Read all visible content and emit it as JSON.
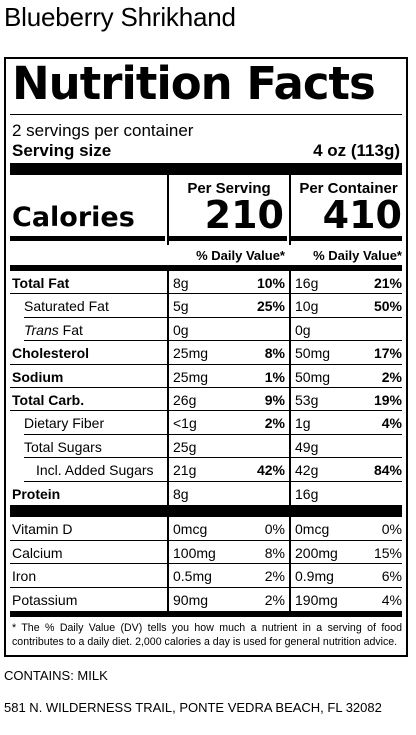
{
  "product_name": "Blueberry Shrikhand",
  "heading": "Nutrition Facts",
  "servings_per_container": "2 servings per container",
  "serving_size_label": "Serving size",
  "serving_size_value": "4 oz (113g)",
  "col1_header": "Per Serving",
  "col2_header": "Per Container",
  "calories_label": "Calories",
  "calories_per_serving": "210",
  "calories_per_container": "410",
  "dv_header": "% Daily Value*",
  "nutrients": [
    {
      "label": "Total Fat",
      "bold": true,
      "indent": 0,
      "a1": "8g",
      "p1": "10%",
      "a2": "16g",
      "p2": "21%"
    },
    {
      "label": "Saturated Fat",
      "bold": false,
      "indent": 1,
      "a1": "5g",
      "p1": "25%",
      "a2": "10g",
      "p2": "50%"
    },
    {
      "label": "Trans Fat",
      "bold": false,
      "indent": 1,
      "italic_word": "Trans",
      "rest": " Fat",
      "a1": "0g",
      "p1": "",
      "a2": "0g",
      "p2": ""
    },
    {
      "label": "Cholesterol",
      "bold": true,
      "indent": 0,
      "a1": "25mg",
      "p1": "8%",
      "a2": "50mg",
      "p2": "17%"
    },
    {
      "label": "Sodium",
      "bold": true,
      "indent": 0,
      "a1": "25mg",
      "p1": "1%",
      "a2": "50mg",
      "p2": "2%"
    },
    {
      "label": "Total Carb.",
      "bold": true,
      "indent": 0,
      "a1": "26g",
      "p1": "9%",
      "a2": "53g",
      "p2": "19%"
    },
    {
      "label": "Dietary Fiber",
      "bold": false,
      "indent": 1,
      "a1": "<1g",
      "p1": "2%",
      "a2": "1g",
      "p2": "4%"
    },
    {
      "label": "Total Sugars",
      "bold": false,
      "indent": 1,
      "a1": "25g",
      "p1": "",
      "a2": "49g",
      "p2": ""
    },
    {
      "label": "Incl. Added Sugars",
      "bold": false,
      "indent": 2,
      "a1": "21g",
      "p1": "42%",
      "a2": "42g",
      "p2": "84%"
    },
    {
      "label": "Protein",
      "bold": true,
      "indent": 0,
      "a1": "8g",
      "p1": "",
      "a2": "16g",
      "p2": ""
    }
  ],
  "vitamins": [
    {
      "label": "Vitamin D",
      "a1": "0mcg",
      "p1": "0%",
      "a2": "0mcg",
      "p2": "0%"
    },
    {
      "label": "Calcium",
      "a1": "100mg",
      "p1": "8%",
      "a2": "200mg",
      "p2": "15%"
    },
    {
      "label": "Iron",
      "a1": "0.5mg",
      "p1": "2%",
      "a2": "0.9mg",
      "p2": "6%"
    },
    {
      "label": "Potassium",
      "a1": "90mg",
      "p1": "2%",
      "a2": "190mg",
      "p2": "4%"
    }
  ],
  "footnote": "* The % Daily Value (DV) tells you how much a nutrient in a serving of food contributes to a daily diet. 2,000 calories a day is used for general nutrition advice.",
  "contains": "CONTAINS: MILK",
  "address": "581 N. WILDERNESS TRAIL, PONTE VEDRA BEACH, FL 32082"
}
